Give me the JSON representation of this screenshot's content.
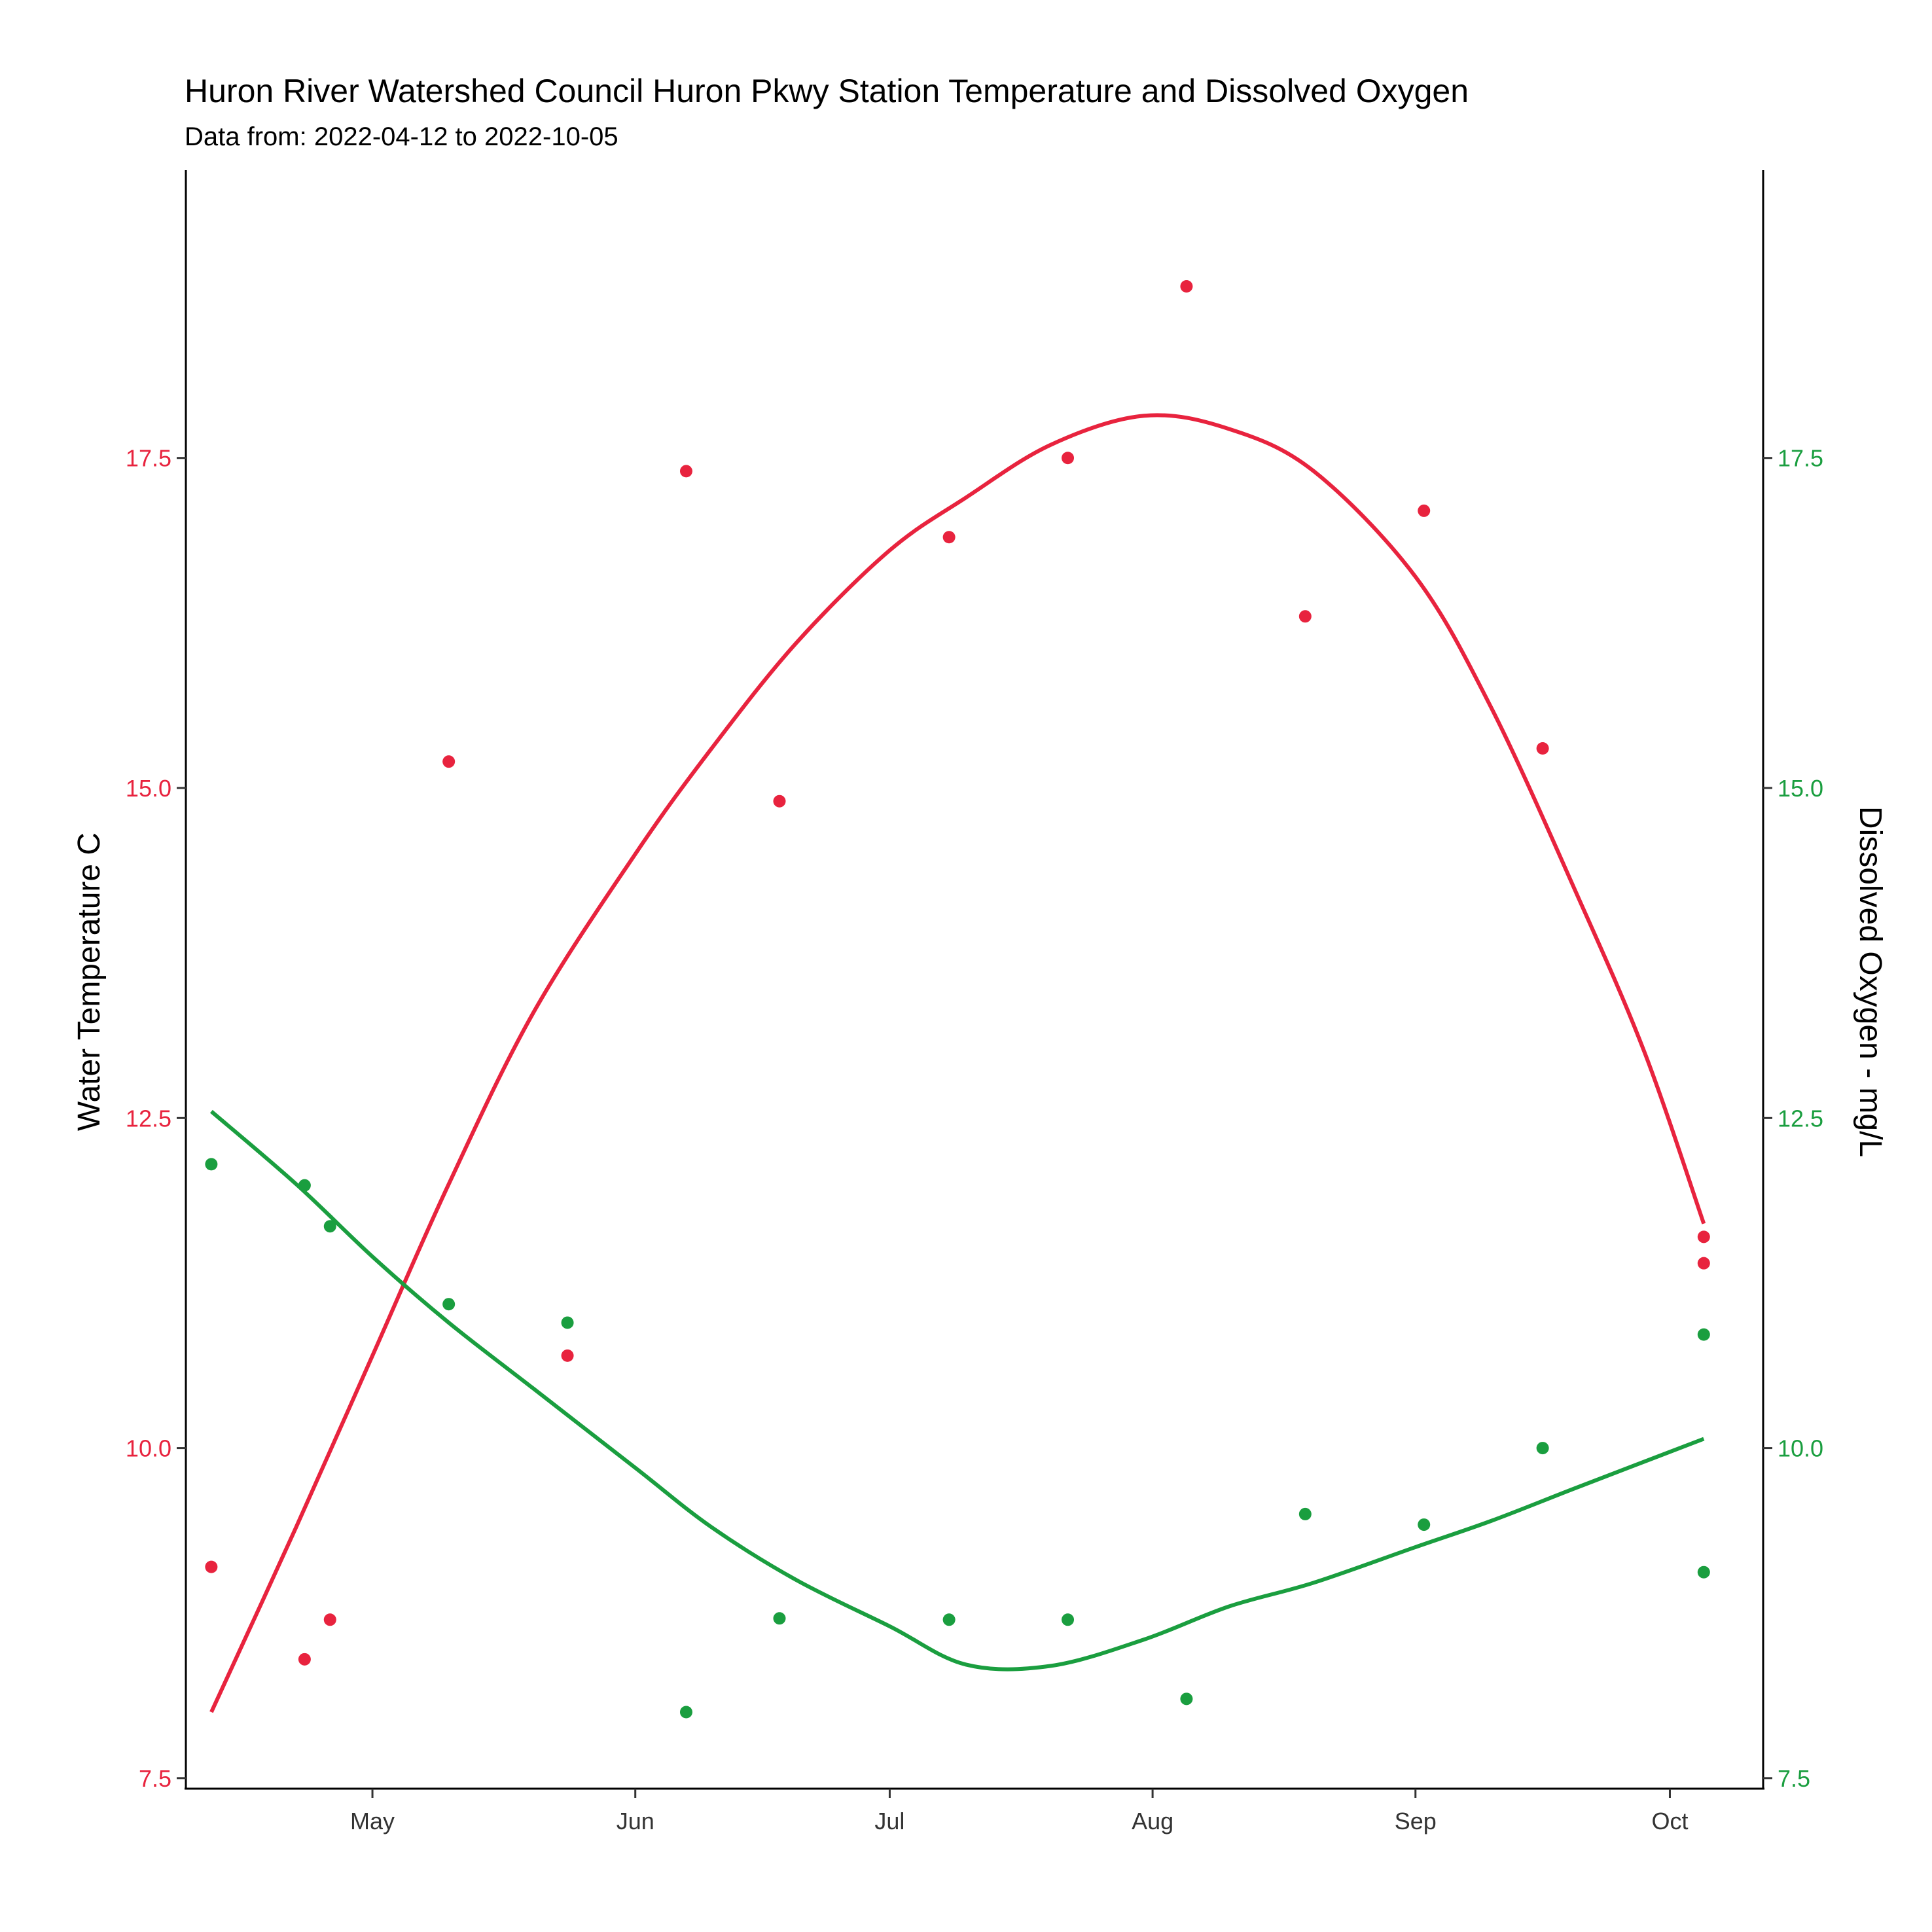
{
  "chart_data": {
    "type": "scatter",
    "title": "Huron River Watershed Council Huron Pkwy Station Temperature and Dissolved Oxygen",
    "subtitle": "Data from: 2022-04-12 to 2022-10-05",
    "ylabel": "Water Temperature C",
    "ylabel_right": "Dissolved Oxygen - mg/L",
    "xlim": [
      "2022-04-09",
      "2022-10-12"
    ],
    "ylim": [
      7.42,
      19.68
    ],
    "ylim_right": [
      7.42,
      19.68
    ],
    "x_ticks": [
      {
        "date": "2022-05-01",
        "label": "May"
      },
      {
        "date": "2022-06-01",
        "label": "Jun"
      },
      {
        "date": "2022-07-01",
        "label": "Jul"
      },
      {
        "date": "2022-08-01",
        "label": "Aug"
      },
      {
        "date": "2022-09-01",
        "label": "Sep"
      },
      {
        "date": "2022-10-01",
        "label": "Oct"
      }
    ],
    "y_ticks_left": [
      "7.5",
      "10.0",
      "12.5",
      "15.0",
      "17.5"
    ],
    "y_ticks_right": [
      "7.5",
      "10.0",
      "12.5",
      "15.0",
      "17.5"
    ],
    "grid": false,
    "legend": "none",
    "series": [
      {
        "axis": "left",
        "color": "#E8233E",
        "points": [
          {
            "x": "2022-04-12",
            "y": 9.1
          },
          {
            "x": "2022-04-23",
            "y": 8.4
          },
          {
            "x": "2022-04-26",
            "y": 8.7
          },
          {
            "x": "2022-05-10",
            "y": 15.2
          },
          {
            "x": "2022-05-24",
            "y": 10.7
          },
          {
            "x": "2022-06-07",
            "y": 17.4
          },
          {
            "x": "2022-06-18",
            "y": 14.9
          },
          {
            "x": "2022-07-08",
            "y": 16.9
          },
          {
            "x": "2022-07-22",
            "y": 17.5
          },
          {
            "x": "2022-08-05",
            "y": 18.8
          },
          {
            "x": "2022-08-19",
            "y": 16.3
          },
          {
            "x": "2022-09-02",
            "y": 17.1
          },
          {
            "x": "2022-09-16",
            "y": 15.3
          },
          {
            "x": "2022-10-05",
            "y": 11.6
          },
          {
            "x": "2022-10-05",
            "y": 11.4
          }
        ],
        "trend": [
          {
            "x": "2022-04-12",
            "y": 8.0
          },
          {
            "x": "2022-04-22",
            "y": 9.4
          },
          {
            "x": "2022-05-01",
            "y": 10.7
          },
          {
            "x": "2022-05-10",
            "y": 12.0
          },
          {
            "x": "2022-05-20",
            "y": 13.3
          },
          {
            "x": "2022-06-01",
            "y": 14.5
          },
          {
            "x": "2022-06-10",
            "y": 15.3
          },
          {
            "x": "2022-06-20",
            "y": 16.1
          },
          {
            "x": "2022-07-01",
            "y": 16.8
          },
          {
            "x": "2022-07-10",
            "y": 17.2
          },
          {
            "x": "2022-07-20",
            "y": 17.6
          },
          {
            "x": "2022-07-31",
            "y": 17.82
          },
          {
            "x": "2022-08-10",
            "y": 17.72
          },
          {
            "x": "2022-08-20",
            "y": 17.4
          },
          {
            "x": "2022-09-01",
            "y": 16.6
          },
          {
            "x": "2022-09-10",
            "y": 15.6
          },
          {
            "x": "2022-09-20",
            "y": 14.2
          },
          {
            "x": "2022-09-28",
            "y": 13.0
          },
          {
            "x": "2022-10-05",
            "y": 11.7
          }
        ]
      },
      {
        "axis": "right",
        "color": "#1A9E3F",
        "points": [
          {
            "x": "2022-04-12",
            "y": 12.15
          },
          {
            "x": "2022-04-23",
            "y": 11.99
          },
          {
            "x": "2022-04-26",
            "y": 11.68
          },
          {
            "x": "2022-05-10",
            "y": 11.09
          },
          {
            "x": "2022-05-24",
            "y": 10.95
          },
          {
            "x": "2022-06-07",
            "y": 8.0
          },
          {
            "x": "2022-06-18",
            "y": 8.71
          },
          {
            "x": "2022-07-08",
            "y": 8.7
          },
          {
            "x": "2022-07-22",
            "y": 8.7
          },
          {
            "x": "2022-08-05",
            "y": 8.1
          },
          {
            "x": "2022-08-19",
            "y": 9.5
          },
          {
            "x": "2022-09-02",
            "y": 9.42
          },
          {
            "x": "2022-09-16",
            "y": 10.0
          },
          {
            "x": "2022-10-05",
            "y": 10.86
          },
          {
            "x": "2022-10-05",
            "y": 9.06
          }
        ],
        "trend": [
          {
            "x": "2022-04-12",
            "y": 12.55
          },
          {
            "x": "2022-04-22",
            "y": 12.0
          },
          {
            "x": "2022-05-01",
            "y": 11.45
          },
          {
            "x": "2022-05-10",
            "y": 10.95
          },
          {
            "x": "2022-05-20",
            "y": 10.45
          },
          {
            "x": "2022-06-01",
            "y": 9.85
          },
          {
            "x": "2022-06-10",
            "y": 9.4
          },
          {
            "x": "2022-06-20",
            "y": 9.0
          },
          {
            "x": "2022-07-01",
            "y": 8.65
          },
          {
            "x": "2022-07-10",
            "y": 8.36
          },
          {
            "x": "2022-07-20",
            "y": 8.35
          },
          {
            "x": "2022-07-31",
            "y": 8.55
          },
          {
            "x": "2022-08-10",
            "y": 8.8
          },
          {
            "x": "2022-08-20",
            "y": 8.98
          },
          {
            "x": "2022-09-01",
            "y": 9.25
          },
          {
            "x": "2022-09-10",
            "y": 9.45
          },
          {
            "x": "2022-09-20",
            "y": 9.7
          },
          {
            "x": "2022-10-05",
            "y": 10.07
          }
        ]
      }
    ]
  }
}
